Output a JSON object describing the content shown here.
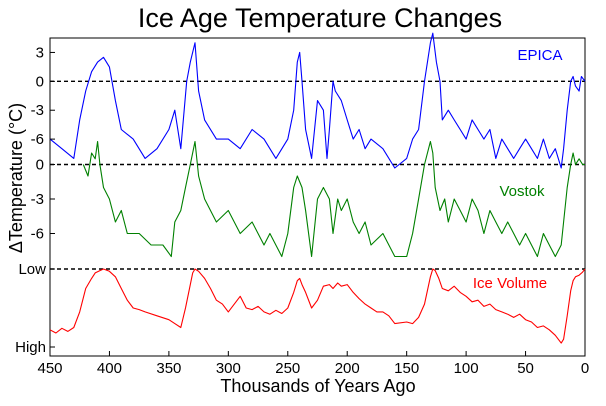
{
  "chart_data": {
    "type": "line",
    "title": "Ice Age Temperature Changes",
    "xlabel": "Thousands of Years Ago",
    "ylabel": "ΔTemperature (°C)",
    "xlim": [
      450,
      0
    ],
    "x_ticks": [
      "450",
      "400",
      "350",
      "300",
      "250",
      "200",
      "150",
      "100",
      "50",
      "0"
    ],
    "x_tick_values": [
      450,
      400,
      350,
      300,
      250,
      200,
      150,
      100,
      50,
      0
    ],
    "panels": [
      {
        "id": "epica",
        "ylim": [
          -9,
          4.5
        ],
        "y_ticks": [
          "3",
          "0",
          "-3",
          "-6"
        ],
        "y_tick_values": [
          3,
          0,
          -3,
          -6
        ],
        "reference_line": 0,
        "series": [
          {
            "name": "EPICA",
            "color": "#0000ff",
            "x": [
              450,
              440,
              430,
              425,
              420,
              415,
              410,
              405,
              400,
              395,
              390,
              380,
              370,
              360,
              350,
              345,
              340,
              335,
              332,
              328,
              325,
              320,
              310,
              300,
              290,
              280,
              270,
              260,
              250,
              245,
              242,
              240,
              238,
              235,
              230,
              225,
              220,
              217,
              215,
              212,
              210,
              205,
              200,
              195,
              190,
              185,
              180,
              170,
              160,
              150,
              145,
              140,
              135,
              130,
              128,
              125,
              122,
              120,
              115,
              110,
              105,
              100,
              95,
              90,
              85,
              80,
              75,
              70,
              65,
              60,
              55,
              50,
              45,
              40,
              35,
              30,
              25,
              20,
              18,
              15,
              12,
              10,
              8,
              5,
              3,
              0
            ],
            "y": [
              -6,
              -7,
              -8,
              -4,
              -1,
              1,
              2,
              2.5,
              1.5,
              -2,
              -5,
              -6,
              -8,
              -7,
              -5,
              -3,
              -7,
              0,
              2,
              4,
              -1,
              -4,
              -6,
              -6,
              -7,
              -5,
              -6,
              -8,
              -6,
              -3,
              2,
              3,
              0,
              -5,
              -8,
              -2,
              -3,
              -8,
              -5,
              0,
              -1,
              -2,
              -4,
              -6,
              -5,
              -7,
              -6,
              -7,
              -9,
              -8,
              -6,
              -5,
              0,
              4,
              5,
              2,
              0,
              -4,
              -3,
              -4,
              -5,
              -6,
              -4,
              -5,
              -6,
              -5,
              -8,
              -6,
              -7,
              -8,
              -7,
              -6,
              -7,
              -8,
              -6,
              -8,
              -7,
              -9,
              -7,
              -3,
              0,
              0.5,
              -0.5,
              -1,
              0.5,
              0
            ]
          }
        ]
      },
      {
        "id": "vostok",
        "ylim": [
          -9,
          3
        ],
        "y_ticks": [
          "0",
          "-3",
          "-6"
        ],
        "y_tick_values": [
          0,
          -3,
          -6
        ],
        "reference_line": 0,
        "series": [
          {
            "name": "Vostok",
            "color": "#008000",
            "x": [
              422,
              418,
              415,
              412,
              410,
              408,
              405,
              400,
              395,
              390,
              385,
              375,
              365,
              355,
              348,
              345,
              340,
              336,
              332,
              328,
              325,
              320,
              310,
              300,
              290,
              280,
              270,
              265,
              255,
              250,
              245,
              242,
              238,
              235,
              230,
              225,
              220,
              215,
              212,
              208,
              205,
              200,
              195,
              190,
              185,
              180,
              170,
              160,
              150,
              145,
              140,
              135,
              130,
              128,
              126,
              122,
              118,
              115,
              110,
              105,
              100,
              95,
              90,
              85,
              80,
              75,
              70,
              65,
              60,
              55,
              50,
              45,
              40,
              35,
              30,
              25,
              20,
              18,
              15,
              12,
              10,
              8,
              5,
              2,
              0
            ],
            "y": [
              0,
              -1,
              1,
              0.5,
              2,
              0,
              -2,
              -3,
              -5,
              -4,
              -6,
              -6,
              -7,
              -7,
              -8,
              -5,
              -4,
              -2,
              0,
              2,
              -1,
              -3,
              -5,
              -4,
              -6,
              -5,
              -7,
              -6,
              -8,
              -6,
              -2,
              -1,
              -2,
              -4,
              -8,
              -3,
              -2,
              -3,
              -6,
              -3,
              -4,
              -3,
              -5,
              -6,
              -5,
              -7,
              -6,
              -8,
              -8,
              -6,
              -3,
              0,
              2,
              1,
              -2,
              -4,
              -3,
              -5,
              -3,
              -4,
              -5,
              -3,
              -4,
              -6,
              -4,
              -5,
              -6,
              -5,
              -6,
              -7,
              -6,
              -7,
              -8,
              -6,
              -7,
              -8,
              -7,
              -5,
              -2,
              0,
              1,
              0,
              0.5,
              0,
              0
            ]
          }
        ]
      },
      {
        "id": "ice-volume",
        "y_tick_labels": [
          "Low",
          "High"
        ],
        "ylim": [
          0,
          1
        ],
        "reference_line": 1,
        "series": [
          {
            "name": "Ice Volume",
            "color": "#ff0000",
            "x": [
              450,
              445,
              440,
              435,
              430,
              425,
              420,
              415,
              412,
              408,
              405,
              400,
              395,
              390,
              385,
              380,
              375,
              370,
              360,
              350,
              345,
              340,
              336,
              332,
              330,
              328,
              325,
              320,
              315,
              310,
              305,
              300,
              295,
              290,
              285,
              280,
              275,
              270,
              265,
              260,
              255,
              250,
              245,
              242,
              240,
              238,
              235,
              230,
              225,
              220,
              215,
              212,
              208,
              205,
              200,
              195,
              190,
              185,
              180,
              175,
              170,
              165,
              160,
              150,
              145,
              140,
              135,
              130,
              128,
              126,
              123,
              120,
              115,
              110,
              105,
              100,
              95,
              90,
              85,
              80,
              75,
              70,
              65,
              60,
              55,
              50,
              45,
              40,
              35,
              30,
              25,
              20,
              18,
              15,
              12,
              10,
              8,
              5,
              2,
              0
            ],
            "y": [
              0.22,
              0.18,
              0.24,
              0.2,
              0.25,
              0.45,
              0.75,
              0.88,
              0.95,
              0.98,
              1.0,
              0.97,
              0.9,
              0.75,
              0.6,
              0.5,
              0.48,
              0.45,
              0.4,
              0.35,
              0.3,
              0.25,
              0.5,
              0.8,
              0.95,
              1.0,
              0.97,
              0.88,
              0.75,
              0.6,
              0.55,
              0.45,
              0.55,
              0.65,
              0.5,
              0.48,
              0.52,
              0.45,
              0.42,
              0.47,
              0.43,
              0.5,
              0.7,
              0.85,
              0.88,
              0.8,
              0.7,
              0.5,
              0.6,
              0.78,
              0.8,
              0.75,
              0.82,
              0.78,
              0.8,
              0.7,
              0.62,
              0.55,
              0.5,
              0.45,
              0.45,
              0.4,
              0.3,
              0.32,
              0.3,
              0.38,
              0.55,
              0.9,
              1.0,
              0.98,
              0.88,
              0.75,
              0.72,
              0.78,
              0.7,
              0.65,
              0.58,
              0.6,
              0.52,
              0.55,
              0.48,
              0.45,
              0.42,
              0.38,
              0.42,
              0.35,
              0.32,
              0.25,
              0.27,
              0.22,
              0.15,
              0.05,
              0.1,
              0.4,
              0.72,
              0.85,
              0.9,
              0.92,
              0.96,
              1.0
            ]
          }
        ]
      }
    ]
  }
}
